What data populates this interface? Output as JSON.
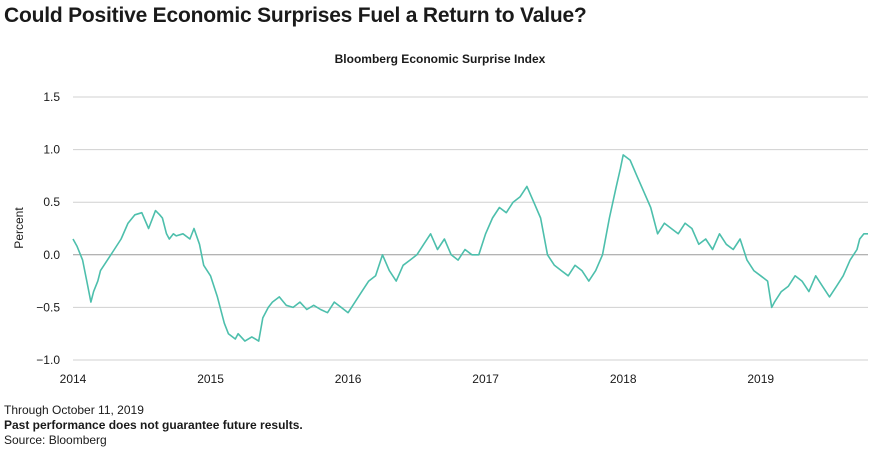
{
  "headline": "Could Positive Economic Surprises Fuel a Return to Value?",
  "footnotes": {
    "through": "Through October 11, 2019",
    "disclaimer": "Past performance does not guarantee future results.",
    "source": "Source: Bloomberg"
  },
  "colors": {
    "line": "#4dbfac",
    "grid": "#d0d0d0",
    "zero_line": "#9a9a9a",
    "text": "#1a1a1a"
  },
  "chart_data": {
    "type": "line",
    "title": "Bloomberg Economic Surprise Index",
    "ylabel": "Percent",
    "ylim": [
      -1.0,
      1.5
    ],
    "yticks": [
      1.5,
      1.0,
      0.5,
      0.0,
      -0.5,
      -1.0
    ],
    "ytick_labels": [
      "1.5",
      "1.0",
      "0.5",
      "0.0",
      "−0.5",
      "−1.0"
    ],
    "xlim": [
      2014.0,
      2019.78
    ],
    "xticks": [
      2014,
      2015,
      2016,
      2017,
      2018,
      2019
    ],
    "xtick_labels": [
      "2014",
      "2015",
      "2016",
      "2017",
      "2018",
      "2019"
    ],
    "grid": "horizontal",
    "legend": "none",
    "series": [
      {
        "x": [
          2014.0,
          2014.03,
          2014.07,
          2014.1,
          2014.13,
          2014.15,
          2014.18,
          2014.2,
          2014.25,
          2014.3,
          2014.35,
          2014.4,
          2014.45,
          2014.5,
          2014.55,
          2014.6,
          2014.63,
          2014.65,
          2014.68,
          2014.7,
          2014.73,
          2014.75,
          2014.8,
          2014.85,
          2014.88,
          2014.92,
          2014.95,
          2015.0,
          2015.05,
          2015.1,
          2015.13,
          2015.18,
          2015.2,
          2015.25,
          2015.3,
          2015.35,
          2015.38,
          2015.42,
          2015.45,
          2015.5,
          2015.55,
          2015.6,
          2015.65,
          2015.7,
          2015.75,
          2015.8,
          2015.85,
          2015.9,
          2015.95,
          2016.0,
          2016.05,
          2016.1,
          2016.15,
          2016.2,
          2016.25,
          2016.3,
          2016.35,
          2016.4,
          2016.45,
          2016.5,
          2016.55,
          2016.6,
          2016.65,
          2016.7,
          2016.75,
          2016.8,
          2016.85,
          2016.9,
          2016.95,
          2017.0,
          2017.05,
          2017.1,
          2017.15,
          2017.2,
          2017.25,
          2017.3,
          2017.35,
          2017.4,
          2017.45,
          2017.5,
          2017.55,
          2017.6,
          2017.65,
          2017.7,
          2017.75,
          2017.8,
          2017.85,
          2017.9,
          2017.95,
          2017.98,
          2018.0,
          2018.05,
          2018.1,
          2018.15,
          2018.2,
          2018.25,
          2018.3,
          2018.35,
          2018.4,
          2018.45,
          2018.5,
          2018.55,
          2018.6,
          2018.65,
          2018.7,
          2018.75,
          2018.8,
          2018.85,
          2018.9,
          2018.95,
          2019.0,
          2019.05,
          2019.08,
          2019.1,
          2019.15,
          2019.2,
          2019.25,
          2019.3,
          2019.35,
          2019.4,
          2019.45,
          2019.5,
          2019.55,
          2019.6,
          2019.65,
          2019.7,
          2019.72,
          2019.75,
          2019.78
        ],
        "y": [
          0.15,
          0.08,
          -0.05,
          -0.25,
          -0.45,
          -0.35,
          -0.25,
          -0.15,
          -0.05,
          0.05,
          0.15,
          0.3,
          0.38,
          0.4,
          0.25,
          0.42,
          0.38,
          0.35,
          0.2,
          0.15,
          0.2,
          0.18,
          0.2,
          0.15,
          0.25,
          0.1,
          -0.1,
          -0.2,
          -0.4,
          -0.65,
          -0.75,
          -0.8,
          -0.75,
          -0.82,
          -0.78,
          -0.82,
          -0.6,
          -0.5,
          -0.45,
          -0.4,
          -0.48,
          -0.5,
          -0.45,
          -0.52,
          -0.48,
          -0.52,
          -0.55,
          -0.45,
          -0.5,
          -0.55,
          -0.45,
          -0.35,
          -0.25,
          -0.2,
          0.0,
          -0.15,
          -0.25,
          -0.1,
          -0.05,
          0.0,
          0.1,
          0.2,
          0.05,
          0.15,
          0.0,
          -0.05,
          0.05,
          0.0,
          0.0,
          0.2,
          0.35,
          0.45,
          0.4,
          0.5,
          0.55,
          0.65,
          0.5,
          0.35,
          0.0,
          -0.1,
          -0.15,
          -0.2,
          -0.1,
          -0.15,
          -0.25,
          -0.15,
          0.0,
          0.35,
          0.65,
          0.82,
          0.95,
          0.9,
          0.75,
          0.6,
          0.45,
          0.2,
          0.3,
          0.25,
          0.2,
          0.3,
          0.25,
          0.1,
          0.15,
          0.05,
          0.2,
          0.1,
          0.05,
          0.15,
          -0.05,
          -0.15,
          -0.2,
          -0.25,
          -0.5,
          -0.45,
          -0.35,
          -0.3,
          -0.2,
          -0.25,
          -0.35,
          -0.2,
          -0.3,
          -0.4,
          -0.3,
          -0.2,
          -0.05,
          0.05,
          0.15,
          0.2,
          0.2
        ]
      }
    ]
  }
}
